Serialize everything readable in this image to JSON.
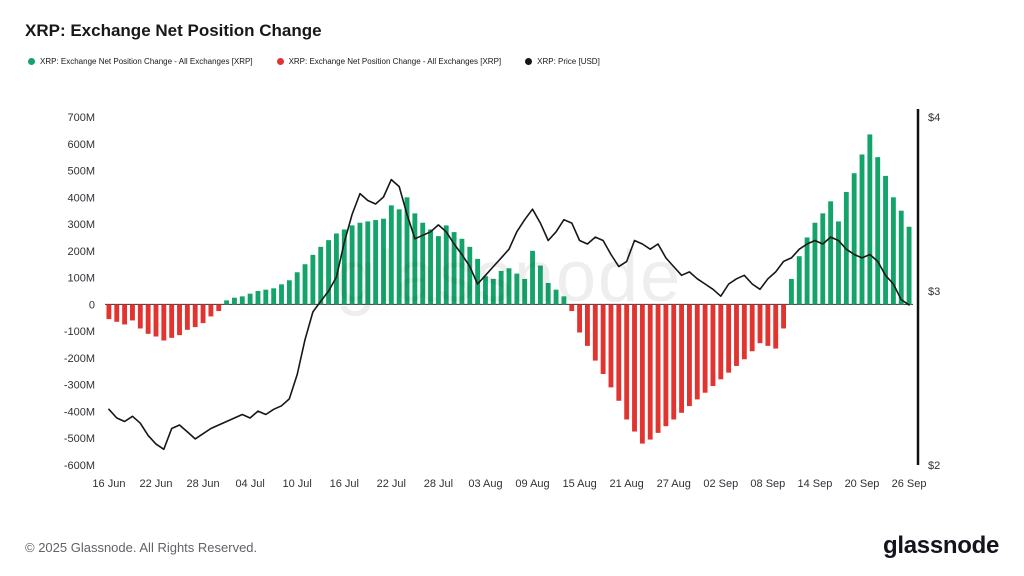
{
  "header": {
    "title": "XRP: Exchange Net Position Change"
  },
  "legend": [
    {
      "label": "XRP: Exchange Net Position Change - All Exchanges [XRP]",
      "color": "#14a46a"
    },
    {
      "label": "XRP: Exchange Net Position Change - All Exchanges [XRP]",
      "color": "#e1332f"
    },
    {
      "label": "XRP: Price [USD]",
      "color": "#15171a"
    }
  ],
  "watermark": "glassnode",
  "footer": {
    "copyright": "© 2025 Glassnode. All Rights Reserved.",
    "logo": "glassnode"
  },
  "chart_data": {
    "type": "bar",
    "title": "XRP: Exchange Net Position Change",
    "x": [
      "16 Jun",
      "17 Jun",
      "18 Jun",
      "19 Jun",
      "20 Jun",
      "21 Jun",
      "22 Jun",
      "23 Jun",
      "24 Jun",
      "25 Jun",
      "26 Jun",
      "27 Jun",
      "28 Jun",
      "29 Jun",
      "30 Jun",
      "01 Jul",
      "02 Jul",
      "03 Jul",
      "04 Jul",
      "05 Jul",
      "06 Jul",
      "07 Jul",
      "08 Jul",
      "09 Jul",
      "10 Jul",
      "11 Jul",
      "12 Jul",
      "13 Jul",
      "14 Jul",
      "15 Jul",
      "16 Jul",
      "17 Jul",
      "18 Jul",
      "19 Jul",
      "20 Jul",
      "21 Jul",
      "22 Jul",
      "23 Jul",
      "24 Jul",
      "25 Jul",
      "26 Jul",
      "27 Jul",
      "28 Jul",
      "29 Jul",
      "30 Jul",
      "31 Jul",
      "01 Aug",
      "02 Aug",
      "03 Aug",
      "04 Aug",
      "05 Aug",
      "06 Aug",
      "07 Aug",
      "08 Aug",
      "09 Aug",
      "10 Aug",
      "11 Aug",
      "12 Aug",
      "13 Aug",
      "14 Aug",
      "15 Aug",
      "16 Aug",
      "17 Aug",
      "18 Aug",
      "19 Aug",
      "20 Aug",
      "21 Aug",
      "22 Aug",
      "23 Aug",
      "24 Aug",
      "25 Aug",
      "26 Aug",
      "27 Aug",
      "28 Aug",
      "29 Aug",
      "30 Aug",
      "31 Aug",
      "01 Sep",
      "02 Sep",
      "03 Sep",
      "04 Sep",
      "05 Sep",
      "06 Sep",
      "07 Sep",
      "08 Sep",
      "09 Sep",
      "10 Sep",
      "11 Sep",
      "12 Sep",
      "13 Sep",
      "14 Sep",
      "15 Sep",
      "16 Sep",
      "17 Sep",
      "18 Sep",
      "19 Sep",
      "20 Sep",
      "21 Sep",
      "22 Sep",
      "23 Sep",
      "24 Sep",
      "25 Sep",
      "26 Sep"
    ],
    "series": [
      {
        "name": "XRP: Exchange Net Position Change - All Exchanges [XRP]",
        "type": "bar",
        "unit_millions": true,
        "positive_color": "#14a46a",
        "negative_color": "#e1332f",
        "values": [
          -55,
          -65,
          -75,
          -60,
          -90,
          -110,
          -120,
          -135,
          -125,
          -115,
          -95,
          -85,
          -70,
          -45,
          -25,
          15,
          25,
          30,
          40,
          50,
          55,
          60,
          75,
          90,
          120,
          150,
          185,
          215,
          240,
          265,
          280,
          295,
          305,
          310,
          315,
          320,
          370,
          355,
          400,
          340,
          305,
          280,
          255,
          295,
          270,
          245,
          215,
          170,
          105,
          95,
          125,
          135,
          115,
          95,
          200,
          145,
          80,
          55,
          30,
          -25,
          -105,
          -155,
          -210,
          -260,
          -310,
          -360,
          -430,
          -475,
          -520,
          -505,
          -480,
          -455,
          -430,
          -405,
          -380,
          -355,
          -330,
          -305,
          -280,
          -255,
          -230,
          -205,
          -175,
          -145,
          -155,
          -165,
          -90,
          95,
          180,
          250,
          305,
          340,
          385,
          310,
          420,
          490,
          560,
          635,
          550,
          480,
          400,
          350,
          290
        ]
      },
      {
        "name": "XRP: Price [USD]",
        "type": "line",
        "axis": "right",
        "color": "#15171a",
        "values": [
          2.32,
          2.27,
          2.25,
          2.28,
          2.24,
          2.17,
          2.12,
          2.09,
          2.21,
          2.23,
          2.19,
          2.15,
          2.18,
          2.21,
          2.23,
          2.25,
          2.27,
          2.29,
          2.27,
          2.31,
          2.29,
          2.32,
          2.34,
          2.38,
          2.52,
          2.72,
          2.88,
          2.94,
          3.0,
          3.08,
          3.28,
          3.44,
          3.56,
          3.52,
          3.5,
          3.54,
          3.64,
          3.6,
          3.44,
          3.3,
          3.32,
          3.34,
          3.38,
          3.34,
          3.27,
          3.21,
          3.14,
          3.04,
          3.09,
          3.14,
          3.19,
          3.24,
          3.34,
          3.41,
          3.47,
          3.39,
          3.29,
          3.34,
          3.41,
          3.39,
          3.29,
          3.27,
          3.31,
          3.29,
          3.21,
          3.14,
          3.17,
          3.29,
          3.27,
          3.24,
          3.27,
          3.19,
          3.14,
          3.09,
          3.11,
          3.07,
          3.04,
          3.01,
          2.97,
          3.04,
          3.07,
          3.09,
          3.04,
          3.01,
          3.07,
          3.11,
          3.17,
          3.19,
          3.24,
          3.27,
          3.29,
          3.27,
          3.31,
          3.29,
          3.24,
          3.21,
          3.19,
          3.21,
          3.17,
          3.09,
          3.04,
          2.95,
          2.92
        ]
      }
    ],
    "left_axis": {
      "ylim": [
        -600,
        700
      ],
      "tick_step": 100,
      "unit": "M"
    },
    "right_axis": {
      "ylim": [
        2,
        4
      ],
      "ticks": [
        "$4",
        "$3",
        "$2"
      ]
    },
    "x_ticks": [
      "16 Jun",
      "22 Jun",
      "28 Jun",
      "04 Jul",
      "10 Jul",
      "16 Jul",
      "22 Jul",
      "28 Jul",
      "03 Aug",
      "09 Aug",
      "15 Aug",
      "21 Aug",
      "27 Aug",
      "02 Sep",
      "08 Sep",
      "14 Sep",
      "20 Sep",
      "26 Sep"
    ],
    "grid": false,
    "legend_position": "top-left"
  }
}
